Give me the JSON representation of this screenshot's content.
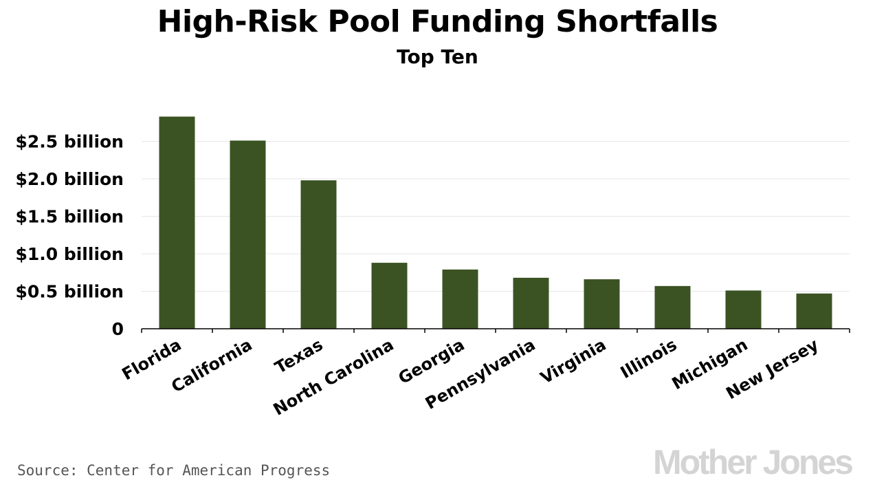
{
  "chart_data": {
    "type": "bar",
    "title": "High-Risk Pool Funding Shortfalls",
    "subtitle": "Top Ten",
    "xlabel": "",
    "ylabel": "",
    "categories": [
      "Florida",
      "California",
      "Texas",
      "North Carolina",
      "Georgia",
      "Pennsylvania",
      "Virginia",
      "Illinois",
      "Michigan",
      "New Jersey"
    ],
    "values": [
      2.83,
      2.51,
      1.98,
      0.88,
      0.79,
      0.68,
      0.66,
      0.57,
      0.51,
      0.47
    ],
    "units": "billion USD",
    "ylim": [
      0,
      2.8
    ],
    "yticks": [
      0,
      0.5,
      1.0,
      1.5,
      2.0,
      2.5
    ],
    "ytick_labels": [
      "0",
      "$0.5 billion",
      "$1.0 billion",
      "$1.5 billion",
      "$2.0 billion",
      "$2.5 billion"
    ],
    "bar_color": "#3b5323",
    "grid": true,
    "legend": "none"
  },
  "source": "Source: Center for American Progress",
  "brand": "Mother Jones"
}
